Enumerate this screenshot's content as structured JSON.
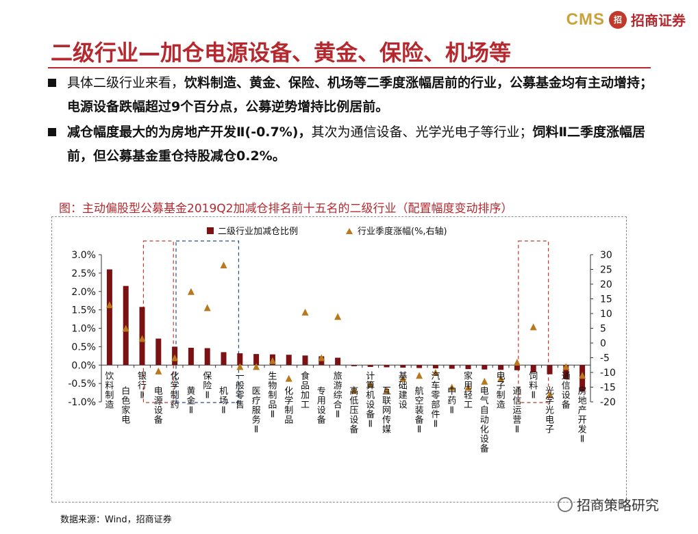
{
  "header": {
    "logo_text": "CMS",
    "logo_seal": "招",
    "company_name": "招商证券",
    "title": "二级行业—加仓电源设备、黄金、保险、机场等"
  },
  "bullets": [
    {
      "lead": "具体二级行业来看，",
      "body": "饮料制造、黄金、保险、机场等二季度涨幅居前的行业，公募基金均有主动增持；电源设备跌幅超过9个百分点，公募逆势增持比例居前。"
    },
    {
      "lead": "",
      "body": "减仓幅度最大的为房地产开发Ⅱ(-0.7%)，",
      "tail": "其次为通信设备、光学光电子等行业；",
      "body2": "饲料Ⅱ二季度涨幅居前，但公募基金重仓持股减仓0.2%。"
    }
  ],
  "figure_title": "图：主动偏股型公募基金2019Q2加减仓排名前十五名的二级行业（配置幅度变动排序）",
  "source": "数据来源：Wind，招商证券",
  "watermark": "招商策略研究",
  "chart_data": {
    "type": "bar+scatter",
    "title": "主动偏股型公募基金2019Q2加减仓排名前十五名的二级行业（配置幅度变动排序）",
    "legend": [
      "二级行业加减仓比例",
      "行业季度涨幅(%,右轴)"
    ],
    "legend_position": "top-center",
    "categories": [
      "饮料制造",
      "白色家电",
      "银行Ⅱ",
      "电源设备",
      "化学制药",
      "黄金Ⅱ",
      "保险Ⅱ",
      "机场Ⅱ",
      "一般零售",
      "医疗服务Ⅱ",
      "生物制品Ⅱ",
      "化学制品",
      "食品加工",
      "专用设备",
      "旅游综合Ⅱ",
      "高低压设备",
      "计算机设备Ⅱ",
      "互联网传媒",
      "基础建设",
      "航空装备Ⅱ",
      "汽车零部件Ⅱ",
      "中药Ⅱ",
      "家用轻工",
      "电气自动化设备",
      "电子制造",
      "通信运营Ⅱ",
      "饲料Ⅱ",
      "光学光电子",
      "通信设备",
      "房地产开发Ⅱ"
    ],
    "bar_values_pct": [
      2.6,
      2.15,
      1.58,
      0.72,
      0.5,
      0.47,
      0.46,
      0.35,
      0.32,
      0.3,
      0.29,
      0.28,
      0.26,
      0.24,
      0.2,
      -0.03,
      -0.05,
      -0.06,
      -0.07,
      -0.08,
      -0.09,
      -0.1,
      -0.11,
      -0.12,
      -0.13,
      -0.14,
      -0.2,
      -0.25,
      -0.38,
      -0.72
    ],
    "scatter_values": [
      13,
      5,
      1.5,
      -9.5,
      -5,
      17.5,
      12,
      26.5,
      -8,
      -8,
      -6,
      -12,
      10.5,
      -5,
      9,
      -16,
      -14,
      -16,
      -12,
      -11,
      -10,
      -15,
      -15,
      -13,
      -12,
      -6.5,
      5.5,
      -17.5,
      -8,
      -11
    ],
    "y_left": {
      "min": -1.0,
      "max": 3.0,
      "ticks": [
        "3.0%",
        "2.5%",
        "2.0%",
        "1.5%",
        "1.0%",
        "0.5%",
        "0.0%",
        "-0.5%",
        "-1.0%"
      ]
    },
    "y_right": {
      "min": -20,
      "max": 30,
      "ticks": [
        "30",
        "25",
        "20",
        "15",
        "10",
        "5",
        "0",
        "-5",
        "-10",
        "-15",
        "-20"
      ]
    },
    "highlight_groups": [
      {
        "from": "电源设备",
        "to": "电源设备",
        "color": "#c0392b"
      },
      {
        "from": "黄金Ⅱ",
        "to": "机场Ⅱ",
        "color": "#1f4e8c"
      },
      {
        "from": "饲料Ⅱ",
        "to": "饲料Ⅱ",
        "color": "#c0392b"
      }
    ],
    "colors": {
      "bar": "#7b1113",
      "marker": "#b8781e",
      "axis": "#333333"
    }
  }
}
